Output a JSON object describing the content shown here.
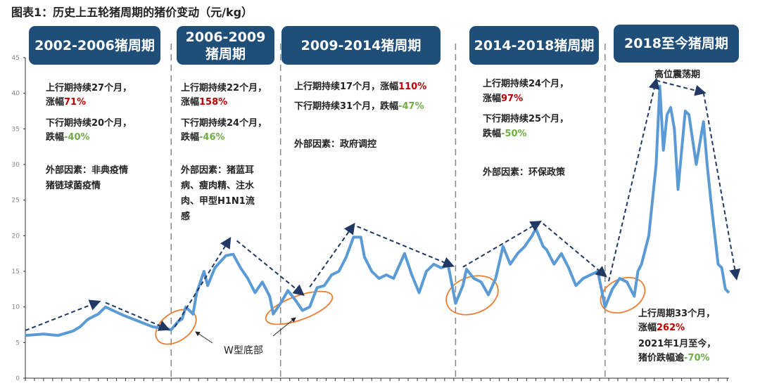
{
  "title": "图表1：历史上五轮猪周期的猪价变动（元/kg）",
  "cycles": [
    {
      "header": "2002-2006猪周期",
      "lines": [
        [
          "上行期持续27个月，"
        ],
        [
          "涨幅",
          "71%"
        ],
        [
          "下行期持续20个月，"
        ],
        [
          "跌幅",
          "-40%"
        ],
        [
          "外部因素：非典疫情"
        ],
        [
          "猪链球菌疫情"
        ]
      ]
    },
    {
      "header": "2006-2009猪周期",
      "lines": [
        [
          "上行期持续22个月，"
        ],
        [
          "涨幅",
          "158%"
        ],
        [
          "下行期持续24个月，"
        ],
        [
          "跌幅",
          "-46%"
        ],
        [
          "外部因素：猪蓝耳"
        ],
        [
          "病、瘦肉精、注水"
        ],
        [
          "肉、甲型H1N1流"
        ],
        [
          "感"
        ]
      ]
    },
    {
      "header": "2009-2014猪周期",
      "lines": [
        [
          "上行期持续17个月，涨幅",
          "110%"
        ],
        [
          "下行期持续31个月，跌幅",
          "-47%"
        ],
        [
          "外部因素：政府调控"
        ]
      ]
    },
    {
      "header": "2014-2018猪周期",
      "lines": [
        [
          "上行期持续24个月，"
        ],
        [
          "涨幅",
          "97%"
        ],
        [
          "下行期持续25个月，"
        ],
        [
          "跌幅",
          "-50%"
        ],
        [
          "外部因素：环保政策"
        ]
      ]
    },
    {
      "header": "2018至今猪周期",
      "lines": [
        [
          "上行周期33个月，"
        ],
        [
          "涨幅",
          "262%"
        ],
        [
          "2021年1月至今，"
        ],
        [
          "猪价跌幅逾",
          "-70%"
        ]
      ]
    }
  ],
  "annotations": {
    "oscillation": "高位震荡期",
    "w_bottom": "W型底部"
  },
  "colors": {
    "header_bg": "#1f4e79",
    "line": "#5b9bd5",
    "trend_arrow": "#1f3864",
    "ellipse": "#ed7d31",
    "rise": "#c00000",
    "fall": "#70ad47"
  },
  "chart_data": {
    "type": "line",
    "title": "图表1：历史上五轮猪周期的猪价变动（元/kg）",
    "xlabel": "",
    "ylabel": "",
    "xlim": [
      2002.5,
      2021.8
    ],
    "ylim": [
      0,
      45
    ],
    "yticks": [
      0,
      5,
      10,
      15,
      20,
      25,
      30,
      35,
      40,
      45
    ],
    "grid": false,
    "cycle_boundaries": [
      2006.5,
      2009.5,
      2014.3,
      2018.4
    ],
    "x": [
      2002.5,
      2003.0,
      2003.4,
      2003.8,
      2004.0,
      2004.2,
      2004.3,
      2004.5,
      2004.7,
      2004.9,
      2005.2,
      2005.5,
      2005.8,
      2006.0,
      2006.3,
      2006.5,
      2006.7,
      2006.8,
      2006.9,
      2007.1,
      2007.2,
      2007.4,
      2007.5,
      2007.7,
      2008.0,
      2008.2,
      2008.4,
      2008.6,
      2008.8,
      2009.0,
      2009.2,
      2009.3,
      2009.5,
      2009.7,
      2009.9,
      2010.1,
      2010.3,
      2010.5,
      2010.7,
      2010.9,
      2011.1,
      2011.3,
      2011.5,
      2011.7,
      2011.8,
      2012.0,
      2012.2,
      2012.4,
      2012.6,
      2012.9,
      2013.1,
      2013.3,
      2013.5,
      2013.7,
      2013.9,
      2014.1,
      2014.3,
      2014.5,
      2014.6,
      2014.8,
      2015.0,
      2015.2,
      2015.4,
      2015.6,
      2015.8,
      2016.0,
      2016.2,
      2016.4,
      2016.5,
      2016.7,
      2016.8,
      2017.0,
      2017.2,
      2017.4,
      2017.6,
      2017.8,
      2018.0,
      2018.2,
      2018.4,
      2018.6,
      2018.8,
      2019.0,
      2019.2,
      2019.3,
      2019.4,
      2019.6,
      2019.8,
      2019.9,
      2020.0,
      2020.1,
      2020.2,
      2020.3,
      2020.4,
      2020.6,
      2020.7,
      2020.9,
      2021.1,
      2021.2,
      2021.3,
      2021.5,
      2021.6,
      2021.7,
      2021.8
    ],
    "series": [
      {
        "values": [
          6.0,
          6.2,
          6.0,
          6.6,
          7.2,
          8.2,
          8.5,
          9.0,
          10.0,
          9.5,
          8.8,
          8.2,
          7.6,
          7.2,
          7.0,
          6.8,
          8.0,
          8.3,
          10.0,
          9.0,
          12.0,
          15.0,
          13.0,
          15.5,
          17.2,
          17.4,
          15.5,
          14.0,
          12.0,
          13.5,
          11.5,
          9.0,
          10.5,
          12.3,
          11.0,
          9.5,
          10.0,
          12.7,
          13.0,
          14.5,
          15.0,
          17.0,
          19.8,
          19.8,
          17.0,
          15.0,
          14.0,
          14.5,
          14.0,
          17.5,
          14.5,
          12.0,
          15.0,
          16.0,
          15.5,
          15.8,
          10.5,
          13.0,
          15.3,
          14.0,
          13.5,
          11.7,
          14.0,
          18.5,
          16.0,
          17.5,
          18.5,
          20.0,
          21.0,
          18.5,
          18.0,
          16.0,
          17.5,
          15.5,
          13.0,
          14.0,
          14.5,
          15.0,
          10.0,
          12.5,
          14.0,
          13.5,
          11.5,
          15.0,
          16.0,
          20.0,
          30.0,
          41.0,
          32.0,
          37.0,
          38.0,
          35.0,
          26.5,
          37.5,
          37.0,
          30.0,
          36.0,
          30.0,
          25.0,
          16.0,
          15.5,
          12.5,
          12.0
        ]
      }
    ],
    "trend_arrows": [
      [
        [
          2002.5,
          6.7
        ],
        [
          2004.5,
          10.7
        ]
      ],
      [
        [
          2004.7,
          10.6
        ],
        [
          2006.4,
          6.9
        ]
      ],
      [
        [
          2006.6,
          7.2
        ],
        [
          2008.1,
          19.5
        ]
      ],
      [
        [
          2008.3,
          19.3
        ],
        [
          2010.1,
          11.8
        ]
      ],
      [
        [
          2010.3,
          12.8
        ],
        [
          2011.5,
          21.5
        ]
      ],
      [
        [
          2011.6,
          21.3
        ],
        [
          2014.2,
          15.8
        ]
      ],
      [
        [
          2014.5,
          15.6
        ],
        [
          2016.6,
          21.9
        ]
      ],
      [
        [
          2016.7,
          21.7
        ],
        [
          2018.4,
          14.4
        ]
      ],
      [
        [
          2018.5,
          13.6
        ],
        [
          2019.8,
          41.8
        ]
      ],
      [
        [
          2019.8,
          41.8
        ],
        [
          2021.1,
          40.1
        ]
      ],
      [
        [
          2021.1,
          40.1
        ],
        [
          2022.0,
          14.1
        ]
      ]
    ]
  }
}
